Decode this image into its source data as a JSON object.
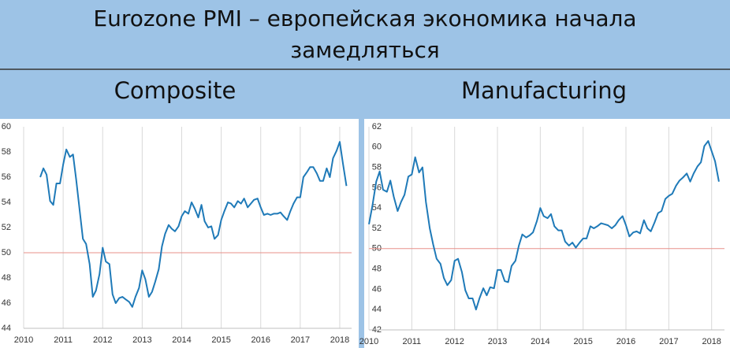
{
  "title": "Eurozone PMI – европейская экономика начала замедляться",
  "chart_data": [
    {
      "type": "line",
      "title": "Composite",
      "x": [
        2010.42,
        2010.5,
        2010.58,
        2010.67,
        2010.75,
        2010.83,
        2010.92,
        2011,
        2011.08,
        2011.17,
        2011.25,
        2011.33,
        2011.42,
        2011.5,
        2011.58,
        2011.67,
        2011.75,
        2011.83,
        2011.92,
        2012,
        2012.08,
        2012.17,
        2012.25,
        2012.33,
        2012.42,
        2012.5,
        2012.58,
        2012.67,
        2012.75,
        2012.83,
        2012.92,
        2013,
        2013.08,
        2013.17,
        2013.25,
        2013.33,
        2013.42,
        2013.5,
        2013.58,
        2013.67,
        2013.75,
        2013.83,
        2013.92,
        2014,
        2014.08,
        2014.17,
        2014.25,
        2014.33,
        2014.42,
        2014.5,
        2014.58,
        2014.67,
        2014.75,
        2014.83,
        2014.92,
        2015,
        2015.08,
        2015.17,
        2015.25,
        2015.33,
        2015.42,
        2015.5,
        2015.58,
        2015.67,
        2015.75,
        2015.83,
        2015.92,
        2016,
        2016.08,
        2016.17,
        2016.25,
        2016.33,
        2016.42,
        2016.5,
        2016.58,
        2016.67,
        2016.75,
        2016.83,
        2016.92,
        2017,
        2017.08,
        2017.17,
        2017.25,
        2017.33,
        2017.42,
        2017.5,
        2017.58,
        2017.67,
        2017.75,
        2017.83,
        2017.92,
        2018,
        2018.08,
        2018.17
      ],
      "series": [
        {
          "name": "Composite",
          "color": "#1f7ab8",
          "values": [
            56.0,
            56.7,
            56.2,
            54.1,
            53.8,
            55.5,
            55.5,
            57.0,
            58.2,
            57.6,
            57.8,
            55.8,
            53.3,
            51.1,
            50.7,
            49.1,
            46.5,
            47.0,
            48.3,
            50.4,
            49.3,
            49.1,
            46.7,
            46.0,
            46.4,
            46.5,
            46.3,
            46.1,
            45.7,
            46.5,
            47.2,
            48.6,
            47.9,
            46.5,
            46.9,
            47.7,
            48.7,
            50.5,
            51.5,
            52.2,
            51.9,
            51.7,
            52.1,
            52.9,
            53.3,
            53.1,
            54.0,
            53.5,
            52.8,
            53.8,
            52.5,
            52.0,
            52.1,
            51.1,
            51.4,
            52.6,
            53.3,
            54.0,
            53.9,
            53.6,
            54.1,
            53.9,
            54.3,
            53.6,
            53.9,
            54.2,
            54.3,
            53.6,
            53.0,
            53.1,
            53.0,
            53.1,
            53.1,
            53.2,
            52.9,
            52.6,
            53.3,
            53.9,
            54.4,
            54.4,
            56.0,
            56.4,
            56.8,
            56.8,
            56.3,
            55.7,
            55.7,
            56.7,
            56.0,
            57.5,
            58.1,
            58.8,
            57.1,
            55.3
          ]
        }
      ],
      "xlim": [
        2010,
        2018.3
      ],
      "xticks": [
        2010,
        2011,
        2012,
        2013,
        2014,
        2015,
        2016,
        2017,
        2018
      ],
      "ylim": [
        44,
        60
      ],
      "yticks": [
        44,
        46,
        48,
        50,
        52,
        54,
        56,
        58,
        60
      ],
      "grid": "x",
      "hline": 50,
      "hline_color": "#e8908a"
    },
    {
      "type": "line",
      "title": "Manufacturing",
      "x": [
        2010,
        2010.08,
        2010.17,
        2010.25,
        2010.33,
        2010.42,
        2010.5,
        2010.58,
        2010.67,
        2010.75,
        2010.83,
        2010.92,
        2011,
        2011.08,
        2011.17,
        2011.25,
        2011.33,
        2011.42,
        2011.5,
        2011.58,
        2011.67,
        2011.75,
        2011.83,
        2011.92,
        2012,
        2012.08,
        2012.17,
        2012.25,
        2012.33,
        2012.42,
        2012.5,
        2012.58,
        2012.67,
        2012.75,
        2012.83,
        2012.92,
        2013,
        2013.08,
        2013.17,
        2013.25,
        2013.33,
        2013.42,
        2013.5,
        2013.58,
        2013.67,
        2013.75,
        2013.83,
        2013.92,
        2014,
        2014.08,
        2014.17,
        2014.25,
        2014.33,
        2014.42,
        2014.5,
        2014.58,
        2014.67,
        2014.75,
        2014.83,
        2014.92,
        2015,
        2015.08,
        2015.17,
        2015.25,
        2015.33,
        2015.42,
        2015.5,
        2015.58,
        2015.67,
        2015.75,
        2015.83,
        2015.92,
        2016,
        2016.08,
        2016.17,
        2016.25,
        2016.33,
        2016.42,
        2016.5,
        2016.58,
        2016.67,
        2016.75,
        2016.83,
        2016.92,
        2017,
        2017.08,
        2017.17,
        2017.25,
        2017.33,
        2017.42,
        2017.5,
        2017.58,
        2017.67,
        2017.75,
        2017.83,
        2017.92,
        2018,
        2018.08,
        2018.17
      ],
      "series": [
        {
          "name": "Manufacturing",
          "color": "#1f7ab8",
          "values": [
            52.4,
            54.2,
            56.6,
            57.6,
            55.8,
            55.6,
            56.7,
            55.1,
            53.7,
            54.6,
            55.3,
            57.1,
            57.3,
            59.0,
            57.5,
            58.0,
            54.6,
            52.0,
            50.4,
            49.0,
            48.5,
            47.1,
            46.4,
            46.9,
            48.8,
            49.0,
            47.7,
            45.9,
            45.1,
            45.1,
            44.0,
            45.1,
            46.1,
            45.4,
            46.2,
            46.1,
            47.9,
            47.9,
            46.8,
            46.7,
            48.3,
            48.8,
            50.3,
            51.4,
            51.1,
            51.3,
            51.6,
            52.7,
            54.0,
            53.2,
            53.0,
            53.4,
            52.2,
            51.8,
            51.8,
            50.7,
            50.3,
            50.6,
            50.1,
            50.6,
            51.0,
            51.0,
            52.2,
            52.0,
            52.2,
            52.5,
            52.4,
            52.3,
            52.0,
            52.3,
            52.8,
            53.2,
            52.3,
            51.2,
            51.6,
            51.7,
            51.5,
            52.8,
            52.0,
            51.7,
            52.6,
            53.5,
            53.7,
            54.9,
            55.2,
            55.4,
            56.2,
            56.7,
            57.0,
            57.4,
            56.6,
            57.4,
            58.1,
            58.5,
            60.1,
            60.6,
            59.6,
            58.6,
            56.6
          ]
        }
      ],
      "xlim": [
        2010,
        2018.3
      ],
      "xticks": [
        2010,
        2011,
        2012,
        2013,
        2014,
        2015,
        2016,
        2017,
        2018
      ],
      "ylim": [
        42,
        62
      ],
      "yticks": [
        42,
        44,
        46,
        48,
        50,
        52,
        54,
        56,
        58,
        60,
        62
      ],
      "grid": "x",
      "hline": 50,
      "hline_color": "#e8908a"
    }
  ]
}
